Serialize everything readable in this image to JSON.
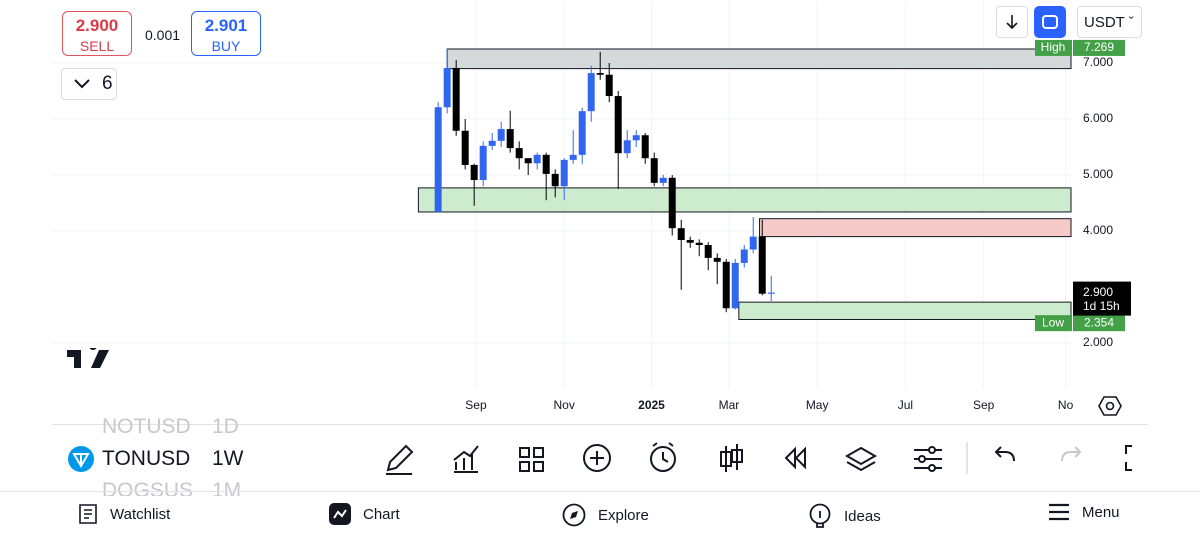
{
  "quote": {
    "sell_price": "2.900",
    "sell_label": "SELL",
    "spread": "0.001",
    "buy_price": "2.901",
    "buy_label": "BUY"
  },
  "interval_toggle": "6",
  "currency": "USDT",
  "chart_data": {
    "type": "candlestick",
    "open": [
      4.34,
      6.21,
      6.91,
      5.79,
      5.18,
      4.91,
      5.52,
      5.61,
      5.82,
      5.48,
      5.3,
      5.21,
      5.36,
      5.02,
      4.8,
      5.27,
      5.36,
      6.14,
      6.82,
      6.79,
      6.41,
      5.39,
      5.62,
      5.71,
      5.3,
      4.86,
      4.95,
      4.05,
      3.84,
      3.79,
      3.75,
      3.52,
      3.45,
      2.62,
      3.43,
      3.67,
      3.9,
      2.88
    ],
    "high": [
      6.3,
      7.25,
      7.05,
      6.0,
      5.2,
      5.6,
      5.75,
      5.95,
      6.15,
      5.6,
      5.3,
      5.4,
      5.4,
      5.1,
      5.3,
      5.8,
      6.2,
      6.95,
      7.2,
      7.0,
      6.5,
      5.8,
      5.8,
      5.75,
      5.4,
      5.0,
      5.0,
      4.2,
      3.9,
      3.85,
      3.8,
      3.6,
      3.5,
      3.5,
      3.75,
      4.25,
      4.2,
      3.2
    ],
    "low": [
      4.34,
      6.1,
      5.7,
      5.1,
      4.45,
      4.8,
      5.45,
      5.5,
      5.4,
      5.1,
      5.0,
      5.1,
      4.55,
      4.6,
      4.55,
      5.2,
      5.2,
      5.95,
      6.7,
      6.3,
      4.75,
      5.3,
      5.5,
      5.2,
      4.8,
      4.8,
      3.92,
      2.95,
      3.7,
      3.55,
      3.3,
      3.05,
      2.55,
      2.6,
      3.35,
      3.6,
      2.85,
      2.75
    ],
    "close": [
      6.21,
      6.91,
      5.79,
      5.18,
      4.91,
      5.52,
      5.61,
      5.82,
      5.48,
      5.3,
      5.21,
      5.36,
      5.02,
      4.8,
      5.27,
      5.36,
      6.14,
      6.82,
      6.79,
      6.41,
      5.39,
      5.62,
      5.71,
      5.3,
      4.86,
      4.95,
      4.05,
      3.84,
      3.79,
      3.75,
      3.52,
      3.45,
      2.62,
      3.43,
      3.67,
      3.9,
      2.88,
      2.9
    ],
    "up_color": "#3366ee",
    "down_color": "#000000",
    "xlim": [
      -42.9,
      70.3
    ],
    "xticks": [
      {
        "value": 4.2,
        "label": "Sep"
      },
      {
        "value": 14.0,
        "label": "Nov"
      },
      {
        "value": 23.7,
        "label": "2025"
      },
      {
        "value": 32.3,
        "label": "Mar"
      },
      {
        "value": 42.1,
        "label": "May"
      },
      {
        "value": 51.9,
        "label": "Jul"
      },
      {
        "value": 60.6,
        "label": "Sep"
      },
      {
        "value": 69.7,
        "label": "No"
      }
    ],
    "ylim": [
      1.2,
      7.4
    ],
    "yticks": [
      {
        "value": 2,
        "label": "2.000"
      },
      {
        "value": 4,
        "label": "4.000"
      },
      {
        "value": 5,
        "label": "5.000"
      },
      {
        "value": 6,
        "label": "6.000"
      },
      {
        "value": 7,
        "label": "7.000"
      }
    ],
    "grid": true,
    "zones": [
      {
        "top": 7.25,
        "bottom": 6.9,
        "start": 1.0,
        "color": "#d5d9d9"
      },
      {
        "top": 4.77,
        "bottom": 4.34,
        "start": -2.2,
        "color": "#cdebcd"
      },
      {
        "top": 4.22,
        "bottom": 3.9,
        "start": 35.7,
        "color": "#f7caca"
      },
      {
        "top": 2.73,
        "bottom": 2.42,
        "start": 33.4,
        "color": "#cdebcd"
      }
    ],
    "markers": [
      {
        "label": "High",
        "value": 7.269
      },
      {
        "label": "Low",
        "value": 2.354
      }
    ],
    "last_price": {
      "value": 2.9,
      "label": "2.900",
      "countdown": "1d 15h"
    }
  },
  "symbols": [
    {
      "symbol": "NOTUSD",
      "interval": "1D"
    },
    {
      "symbol": "TONUSD",
      "interval": "1W"
    },
    {
      "symbol": "DOGSUS",
      "interval": "1M"
    }
  ],
  "nav": [
    "Watchlist",
    "Chart",
    "Explore",
    "Ideas",
    "Menu"
  ]
}
